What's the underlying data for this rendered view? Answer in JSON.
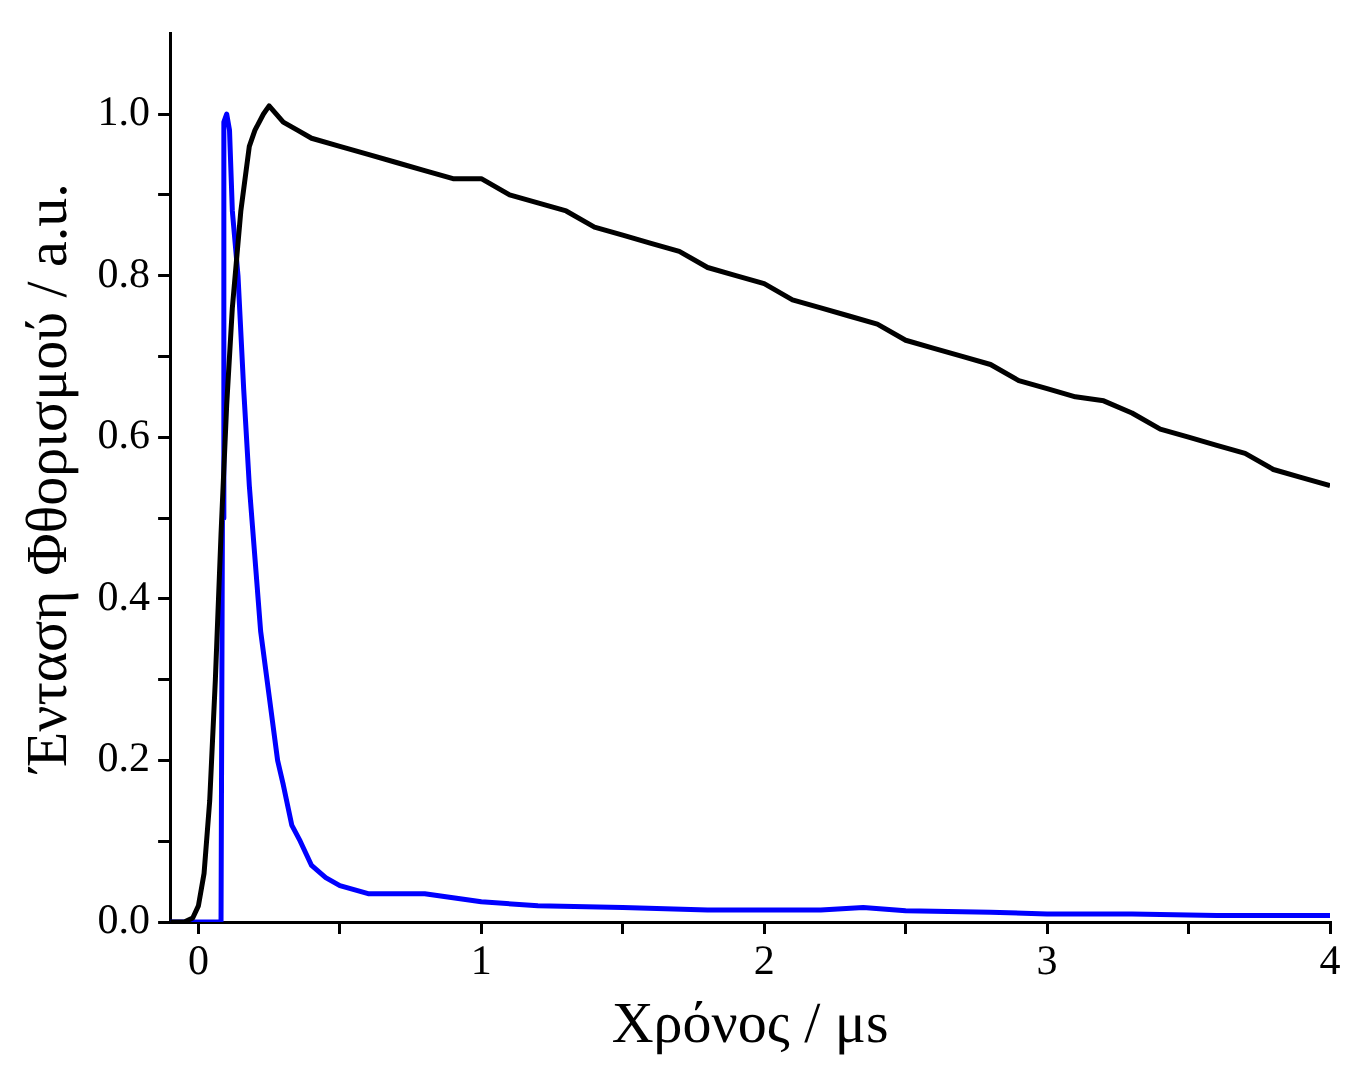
{
  "chart_data": {
    "type": "line",
    "xlabel": "Χρόνος / μs",
    "ylabel": "Ένταση Φθορισμού / a.u.",
    "xlim": [
      -0.1,
      4
    ],
    "ylim": [
      0,
      1.1
    ],
    "xticks": [
      0,
      {
        "value": 0.5,
        "label": null
      },
      1,
      {
        "value": 1.5,
        "label": null
      },
      2,
      {
        "value": 2.5,
        "label": null
      },
      3,
      {
        "value": 3.5,
        "label": null
      },
      4
    ],
    "yticks": [
      {
        "value": 0,
        "label": "0.0"
      },
      {
        "value": 0.1,
        "label": null
      },
      0.2,
      {
        "value": 0.3,
        "label": null
      },
      0.4,
      {
        "value": 0.5,
        "label": null
      },
      0.6,
      {
        "value": 0.7,
        "label": null
      },
      0.8,
      {
        "value": 0.9,
        "label": null
      },
      {
        "value": 1,
        "label": "1.0"
      }
    ],
    "grid": false,
    "legend": false,
    "marker": "none",
    "line_style": "solid",
    "series": [
      {
        "color": "#000000",
        "x": [
          -0.1,
          -0.05,
          -0.02,
          0,
          0.02,
          0.04,
          0.06,
          0.08,
          0.1,
          0.12,
          0.15,
          0.18,
          0.2,
          0.23,
          0.25,
          0.3,
          0.35,
          0.4,
          0.5,
          0.6,
          0.7,
          0.8,
          0.9,
          1.0,
          1.1,
          1.2,
          1.3,
          1.4,
          1.5,
          1.6,
          1.7,
          1.8,
          1.9,
          2.0,
          2.1,
          2.2,
          2.3,
          2.4,
          2.5,
          2.6,
          2.7,
          2.8,
          2.9,
          3.0,
          3.1,
          3.2,
          3.3,
          3.4,
          3.5,
          3.6,
          3.7,
          3.8,
          3.9,
          4.0
        ],
        "values": [
          0,
          0,
          0.005,
          0.02,
          0.06,
          0.15,
          0.3,
          0.48,
          0.64,
          0.76,
          0.88,
          0.96,
          0.98,
          1.0,
          1.01,
          0.99,
          0.98,
          0.97,
          0.96,
          0.95,
          0.94,
          0.93,
          0.92,
          0.92,
          0.9,
          0.89,
          0.88,
          0.86,
          0.85,
          0.84,
          0.83,
          0.81,
          0.8,
          0.79,
          0.77,
          0.76,
          0.75,
          0.74,
          0.72,
          0.71,
          0.7,
          0.69,
          0.67,
          0.66,
          0.65,
          0.645,
          0.63,
          0.61,
          0.6,
          0.59,
          0.58,
          0.56,
          0.55,
          0.54
        ]
      },
      {
        "color": "#0000ff",
        "x": [
          -0.1,
          0.05,
          0.08,
          0.085,
          0.09,
          0.1,
          0.11,
          0.12,
          0.14,
          0.16,
          0.18,
          0.2,
          0.22,
          0.25,
          0.28,
          0.3,
          0.33,
          0.36,
          0.4,
          0.45,
          0.5,
          0.55,
          0.6,
          0.7,
          0.8,
          0.9,
          1.0,
          1.2,
          1.5,
          1.8,
          2.0,
          2.2,
          2.35,
          2.5,
          2.8,
          3.0,
          3.3,
          3.6,
          4.0
        ],
        "values": [
          0,
          0,
          0,
          0.5,
          0.99,
          1.0,
          0.98,
          0.88,
          0.8,
          0.66,
          0.54,
          0.45,
          0.36,
          0.28,
          0.2,
          0.17,
          0.12,
          0.1,
          0.07,
          0.055,
          0.045,
          0.04,
          0.035,
          0.035,
          0.035,
          0.03,
          0.025,
          0.02,
          0.018,
          0.015,
          0.015,
          0.015,
          0.018,
          0.014,
          0.012,
          0.01,
          0.01,
          0.008,
          0.008
        ]
      }
    ]
  }
}
